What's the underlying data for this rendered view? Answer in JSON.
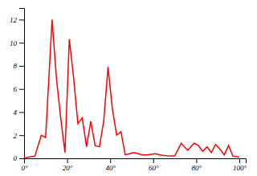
{
  "chart_data": {
    "type": "line",
    "x": [
      0,
      2,
      5,
      8,
      10,
      13,
      15,
      17,
      19,
      21,
      23,
      25,
      27,
      29,
      31,
      33,
      35,
      37,
      39,
      41,
      43,
      45,
      47,
      49,
      51,
      53,
      55,
      57,
      59,
      61,
      63,
      65,
      67,
      70,
      73,
      76,
      79,
      81,
      83,
      85,
      87,
      89,
      91,
      93,
      95,
      97,
      100
    ],
    "values": [
      0,
      0.1,
      0.2,
      2.0,
      1.8,
      12.0,
      7.0,
      3.5,
      0.5,
      10.3,
      7.0,
      3.0,
      3.5,
      1.0,
      3.2,
      1.1,
      1.0,
      3.2,
      7.9,
      4.3,
      2.0,
      2.3,
      0.3,
      0.4,
      0.5,
      0.4,
      0.3,
      0.3,
      0.35,
      0.4,
      0.3,
      0.25,
      0.2,
      0.2,
      1.3,
      0.7,
      1.3,
      1.1,
      0.6,
      1.0,
      0.5,
      1.2,
      0.8,
      0.3,
      1.1,
      0.2,
      0.1
    ],
    "color": "#ff0000",
    "xlim": [
      0,
      103
    ],
    "ylim": [
      0,
      13
    ],
    "xticks": [
      {
        "value": 0,
        "label": "0°"
      },
      {
        "value": 20,
        "label": "20°"
      },
      {
        "value": 40,
        "label": "40°"
      },
      {
        "value": 60,
        "label": "60°"
      },
      {
        "value": 80,
        "label": "80°"
      },
      {
        "value": 100,
        "label": "100°"
      }
    ],
    "yticks": [
      0,
      2,
      4,
      6,
      8,
      10,
      12
    ]
  }
}
